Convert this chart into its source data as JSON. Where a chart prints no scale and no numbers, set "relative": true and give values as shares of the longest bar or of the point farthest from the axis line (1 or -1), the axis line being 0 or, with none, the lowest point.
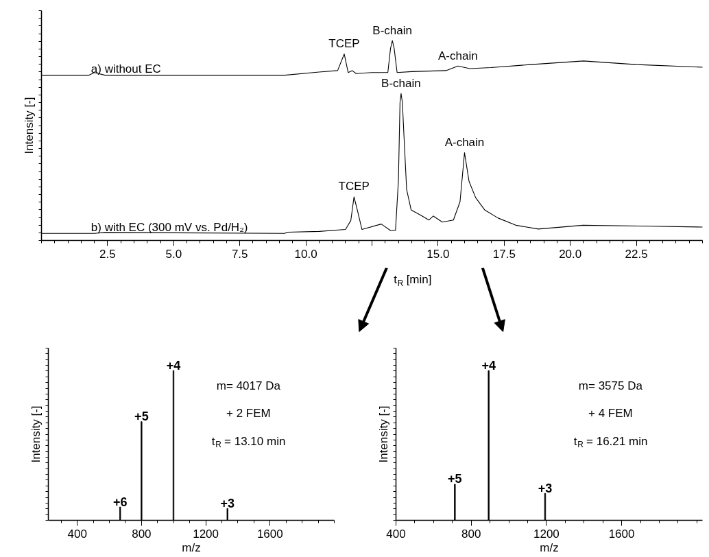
{
  "chart_data": [
    {
      "type": "line",
      "relative": true,
      "xlabel": "t$_{R}$ [min]",
      "ylabel": "Intensity [-]",
      "xlim": [
        0,
        25
      ],
      "xticks": [
        2.5,
        {
          "value": 5,
          "label": "5.0"
        },
        7.5,
        {
          "value": 10,
          "label": "10.0"
        },
        {
          "value": 12.5,
          "label": null
        },
        {
          "value": 15,
          "label": "15.0"
        },
        17.5,
        {
          "value": 20,
          "label": "20.0"
        },
        22.5
      ],
      "grid": false,
      "legend": false,
      "line_style": "solid",
      "series": [
        {
          "name": "a) without EC",
          "color": "#000000",
          "x": [
            0,
            1.8,
            2.0,
            2.4,
            9.2,
            10.5,
            11.2,
            11.45,
            11.6,
            11.75,
            11.9,
            12.5,
            13.1,
            13.2,
            13.27,
            13.34,
            13.45,
            14,
            15.3,
            15.75,
            16.2,
            17,
            18.5,
            20.5,
            22.5,
            25
          ],
          "values": [
            0.827,
            0.827,
            0.84,
            0.827,
            0.827,
            0.843,
            0.85,
            0.933,
            0.84,
            0.85,
            0.835,
            0.84,
            0.84,
            0.96,
            1.0,
            0.96,
            0.84,
            0.845,
            0.85,
            0.873,
            0.86,
            0.865,
            0.88,
            0.898,
            0.88,
            0.867
          ]
        },
        {
          "name": "b) with EC (300 mV vs. Pd/H₂)",
          "color": "#000000",
          "x": [
            0,
            2,
            2.4,
            9.2,
            9.3,
            10.5,
            11.5,
            11.7,
            11.82,
            11.95,
            12.12,
            12.85,
            13.2,
            13.39,
            13.5,
            13.56,
            13.6,
            13.65,
            13.7,
            13.81,
            13.98,
            14.4,
            14.65,
            14.82,
            15.16,
            15.58,
            15.83,
            16.0,
            16.17,
            16.42,
            16.76,
            17.27,
            17.94,
            18.79,
            20.48,
            23.0,
            25.0
          ],
          "values": [
            0.035,
            0.035,
            0.04,
            0.035,
            0.041,
            0.045,
            0.055,
            0.1,
            0.218,
            0.15,
            0.055,
            0.082,
            0.05,
            0.051,
            0.3,
            0.69,
            0.735,
            0.69,
            0.55,
            0.255,
            0.153,
            0.122,
            0.102,
            0.122,
            0.092,
            0.102,
            0.194,
            0.439,
            0.296,
            0.214,
            0.153,
            0.112,
            0.076,
            0.057,
            0.076,
            0.071,
            0.067
          ]
        }
      ],
      "annotations": [
        {
          "text": "TCEP",
          "x": 11.45,
          "y": 0.933
        },
        {
          "text": "B-chain",
          "x": 13.27,
          "y": 1.0
        },
        {
          "text": "A-chain",
          "x": 15.75,
          "y": 0.873
        },
        {
          "text": "TCEP",
          "x": 11.82,
          "y": 0.218
        },
        {
          "text": "B-chain",
          "x": 13.6,
          "y": 0.735
        },
        {
          "text": "A-chain",
          "x": 16.0,
          "y": 0.439
        }
      ]
    },
    {
      "type": "bar",
      "relative": true,
      "xlabel": "m/z",
      "ylabel": "Intensity [-]",
      "xlim": [
        220,
        2000
      ],
      "xticks": [
        400,
        800,
        1200,
        1600
      ],
      "grid": false,
      "legend": false,
      "color": "#000000",
      "x": [
        667,
        800,
        999,
        1335
      ],
      "values": [
        0.089,
        0.659,
        1,
        0.079
      ],
      "annotations": [
        {
          "text": "+6",
          "x": 667,
          "y": 0.089
        },
        {
          "text": "+5",
          "x": 800,
          "y": 0.659
        },
        {
          "text": "+4",
          "x": 999,
          "y": 1
        },
        {
          "text": "+3",
          "x": 1335,
          "y": 0.079
        },
        "m= 4017 Da",
        "+ 2 FEM",
        "t$_{R}$ = 13.10 min"
      ]
    },
    {
      "type": "bar",
      "relative": true,
      "xlabel": "m/z",
      "ylabel": "Intensity [-]",
      "xlim": [
        400,
        2030
      ],
      "xticks": [
        400,
        800,
        1200,
        1600
      ],
      "grid": false,
      "legend": false,
      "color": "#000000",
      "x": [
        713,
        893,
        1193
      ],
      "values": [
        0.241,
        1,
        0.18
      ],
      "annotations": [
        {
          "text": "+5",
          "x": 713,
          "y": 0.241
        },
        {
          "text": "+4",
          "x": 893,
          "y": 1
        },
        {
          "text": "+3",
          "x": 1193,
          "y": 0.18
        },
        "m= 3575 Da",
        "+ 4 FEM",
        "t$_{R}$ = 16.21 min"
      ]
    }
  ]
}
